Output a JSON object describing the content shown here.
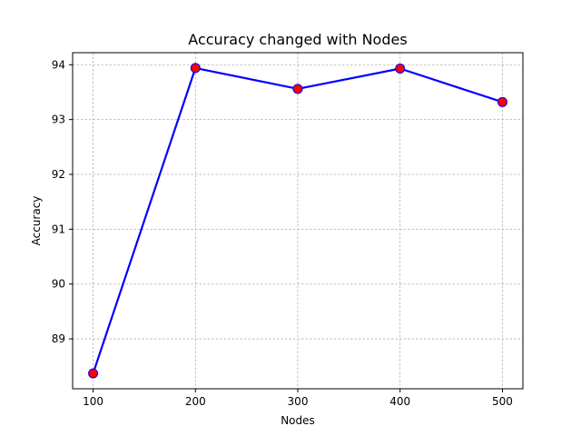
{
  "chart_data": {
    "type": "line",
    "title": "Accuracy changed with Nodes",
    "xlabel": "Nodes",
    "ylabel": "Accuracy",
    "x": [
      100,
      200,
      300,
      400,
      500
    ],
    "series": [
      {
        "values": [
          88.37,
          93.94,
          93.56,
          93.93,
          93.32
        ]
      }
    ],
    "xticks": [
      "100",
      "200",
      "300",
      "400",
      "500"
    ],
    "yticks": [
      "89",
      "90",
      "91",
      "92",
      "93",
      "94"
    ],
    "xlim": [
      80,
      520
    ],
    "ylim": [
      88.09,
      94.22
    ],
    "grid": true,
    "line_color": "#0000ff",
    "marker_face_color": "#ff0000",
    "marker_edge_color": "#0000ff"
  }
}
